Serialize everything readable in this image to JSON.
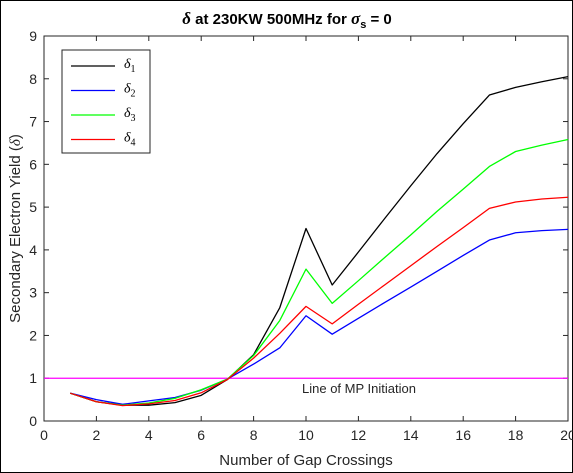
{
  "chart_data": {
    "type": "line",
    "title": "δ at 230KW 500MHz for σs = 0",
    "title_parts": {
      "symbol_main": "δ",
      "text_main": " at 230KW 500MHz for ",
      "symbol_sigma": "σ",
      "sub": "s",
      "text_end": " = 0"
    },
    "xlabel": "Number of Gap Crossings",
    "ylabel": "Secondary Electron Yield (δ)",
    "ylabel_parts": {
      "text": "Secondary Electron Yield (",
      "symbol": "δ",
      "end": ")"
    },
    "xlim": [
      0,
      20
    ],
    "ylim": [
      0,
      9
    ],
    "xticks": [
      0,
      2,
      4,
      6,
      8,
      10,
      12,
      14,
      16,
      18,
      20
    ],
    "yticks": [
      0,
      1,
      2,
      3,
      4,
      5,
      6,
      7,
      8,
      9
    ],
    "grid": false,
    "legend_position": "top-left",
    "x": [
      1,
      2,
      3,
      4,
      5,
      6,
      7,
      8,
      9,
      10,
      11,
      12,
      13,
      14,
      15,
      16,
      17,
      18,
      19,
      20
    ],
    "series": [
      {
        "name": "δ1",
        "symbol": "δ",
        "sub": "1",
        "color": "#000000",
        "values": [
          0.65,
          0.45,
          0.37,
          0.37,
          0.43,
          0.6,
          0.97,
          1.55,
          2.65,
          4.5,
          3.18,
          3.95,
          4.73,
          5.5,
          6.25,
          6.95,
          7.62,
          7.8,
          7.93,
          8.05
        ]
      },
      {
        "name": "δ2",
        "symbol": "δ",
        "sub": "2",
        "color": "#0000ff",
        "values": [
          0.65,
          0.5,
          0.39,
          0.47,
          0.55,
          0.72,
          0.98,
          1.33,
          1.71,
          2.46,
          2.03,
          2.4,
          2.77,
          3.13,
          3.5,
          3.87,
          4.23,
          4.4,
          4.45,
          4.48
        ]
      },
      {
        "name": "δ3",
        "symbol": "δ",
        "sub": "3",
        "color": "#00ff00",
        "values": [
          0.65,
          0.45,
          0.37,
          0.42,
          0.53,
          0.73,
          0.98,
          1.53,
          2.35,
          3.55,
          2.75,
          3.28,
          3.82,
          4.35,
          4.9,
          5.42,
          5.95,
          6.3,
          6.45,
          6.58
        ]
      },
      {
        "name": "δ4",
        "symbol": "δ",
        "sub": "4",
        "color": "#ff0000",
        "values": [
          0.65,
          0.45,
          0.36,
          0.4,
          0.48,
          0.66,
          0.97,
          1.47,
          2.05,
          2.68,
          2.27,
          2.73,
          3.18,
          3.63,
          4.08,
          4.52,
          4.97,
          5.12,
          5.19,
          5.23
        ]
      }
    ],
    "reference_line": {
      "y": 1,
      "color": "#ff00ff",
      "label": "Line of MP Initiation",
      "label_x": 10
    }
  }
}
